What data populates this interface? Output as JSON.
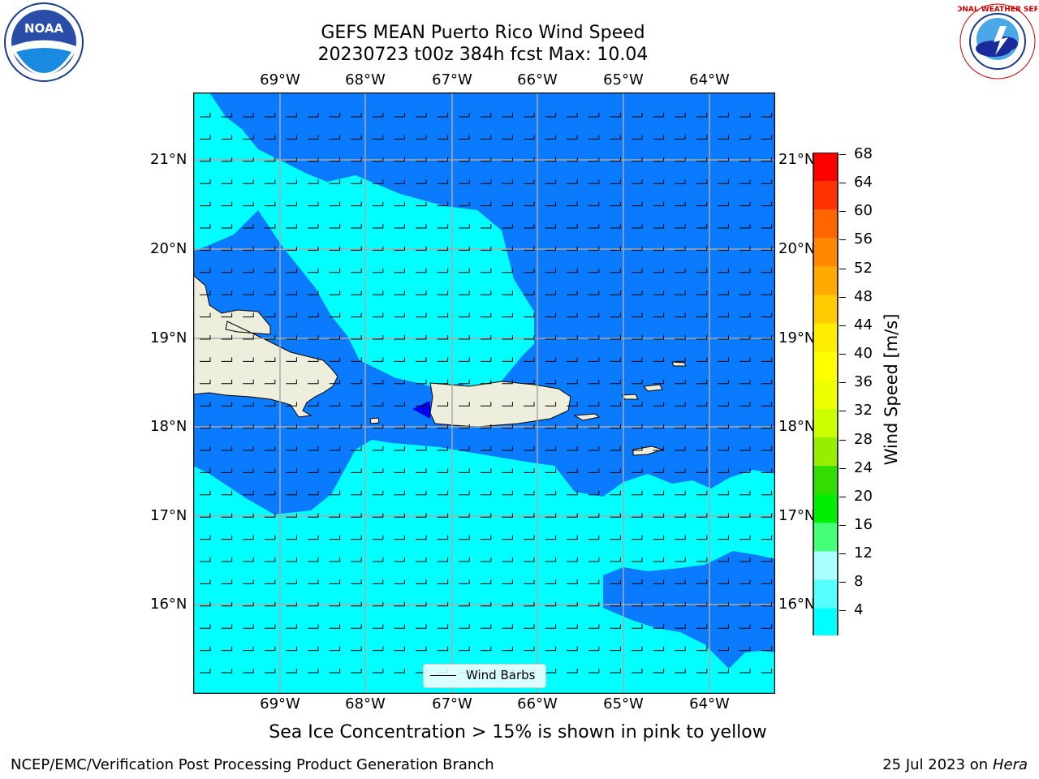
{
  "title": {
    "line1": "GEFS MEAN Puerto Rico Wind Speed",
    "line2": "20230723 t00z 384h fcst   Max: 10.04"
  },
  "logos": {
    "left_icon": "noaa-logo",
    "left_text": "NOAA",
    "right_icon": "nws-logo",
    "right_text": "NATIONAL WEATHER SERVICE"
  },
  "map": {
    "lon_labels": [
      "69°W",
      "68°W",
      "67°W",
      "66°W",
      "65°W",
      "64°W"
    ],
    "lat_labels": [
      "21°N",
      "20°N",
      "19°N",
      "18°N",
      "17°N",
      "16°N"
    ],
    "legend_label": "Wind Barbs",
    "colors": {
      "water_4_8": "#0a7bff",
      "water_8_12": "#00ffff",
      "land": "#eeeedd",
      "below_4": "#0000ee"
    }
  },
  "colorbar": {
    "label": "Wind Speed [m/s]",
    "ticks": [
      "68",
      "64",
      "60",
      "56",
      "52",
      "48",
      "44",
      "40",
      "36",
      "32",
      "28",
      "24",
      "20",
      "16",
      "12",
      "8",
      "4"
    ],
    "colors": [
      "#ff0000",
      "#ff3300",
      "#ff6600",
      "#ff8800",
      "#ffaa00",
      "#ffcc00",
      "#ffee00",
      "#ffff00",
      "#eeff00",
      "#ccff00",
      "#99ee00",
      "#33dd00",
      "#00ee00",
      "#44ff77",
      "#aaffff",
      "#55ffff",
      "#00ffff",
      "#0a7bff"
    ]
  },
  "caption": "Sea Ice Concentration > 15% is shown in pink to yellow",
  "footer": {
    "left": "NCEP/EMC/Verification Post Processing Product Generation Branch",
    "right_prefix": "25 Jul 2023 on ",
    "right_host": "Hera"
  }
}
